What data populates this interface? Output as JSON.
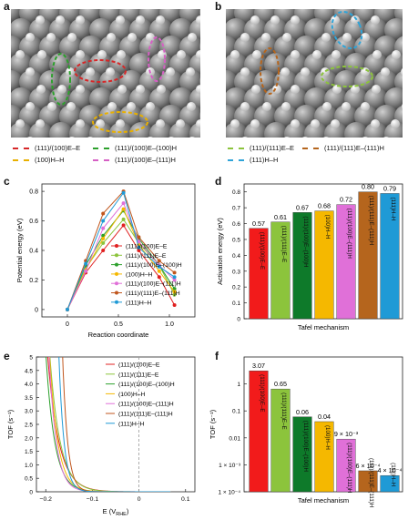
{
  "panels": {
    "a": {
      "letter": "a",
      "legend": [
        {
          "label": "(111)/(100)E–E",
          "color": "#d62728"
        },
        {
          "label": "(111)/(100)E–(100)H",
          "color": "#2ca02c"
        },
        {
          "label": "(100)H–H",
          "color": "#e8b000"
        },
        {
          "label": "(111)/(100)E–(111)H",
          "color": "#d65fc4"
        }
      ]
    },
    "b": {
      "letter": "b",
      "legend": [
        {
          "label": "(111)/(111)E–E",
          "color": "#8cc43c"
        },
        {
          "label": "(111)/(111)E–(111)H",
          "color": "#b5651d"
        },
        {
          "label": "(111)H–H",
          "color": "#2fa4d8"
        }
      ]
    },
    "c": {
      "letter": "c"
    },
    "d": {
      "letter": "d"
    },
    "e": {
      "letter": "e"
    },
    "f": {
      "letter": "f"
    }
  },
  "chart_data": [
    {
      "id": "c",
      "type": "line",
      "xlabel": "Reaction coordinate",
      "ylabel": "Potential energy (eV)",
      "xlim": [
        -0.25,
        1.25
      ],
      "ylim": [
        -0.05,
        0.85
      ],
      "xticks": [
        0,
        0.5,
        1.0
      ],
      "xtick_labels": [
        "0",
        "0.5",
        "1.0"
      ],
      "yticks": [
        0,
        0.2,
        0.4,
        0.6,
        0.8
      ],
      "ytick_labels": [
        "0",
        "0.2",
        "0.4",
        "0.6",
        "0.8"
      ],
      "x": [
        0,
        0.18,
        0.35,
        0.55,
        0.7,
        0.9,
        1.05
      ],
      "series": [
        {
          "name": "(111)/(100)E–E",
          "color": "#e02020",
          "values": [
            0,
            0.25,
            0.4,
            0.57,
            0.4,
            0.22,
            0.03
          ]
        },
        {
          "name": "(111)/(111)E–E",
          "color": "#8cc43c",
          "values": [
            0,
            0.28,
            0.45,
            0.61,
            0.45,
            0.3,
            0.1
          ]
        },
        {
          "name": "(111)/(100)E–(100)H",
          "color": "#2ca02c",
          "values": [
            0,
            0.3,
            0.5,
            0.67,
            0.48,
            0.3,
            0.14
          ]
        },
        {
          "name": "(100)H–H",
          "color": "#f5b800",
          "values": [
            0,
            0.27,
            0.48,
            0.68,
            0.44,
            0.26,
            0.12
          ]
        },
        {
          "name": "(111)/(100)E–(111)H",
          "color": "#e070d8",
          "values": [
            0,
            0.26,
            0.55,
            0.72,
            0.46,
            0.3,
            0.2
          ]
        },
        {
          "name": "(111)/(111)E–(111)H",
          "color": "#c0561d",
          "values": [
            0,
            0.33,
            0.65,
            0.8,
            0.49,
            0.33,
            0.25
          ]
        },
        {
          "name": "(111)H–H",
          "color": "#1f9ad6",
          "values": [
            0,
            0.31,
            0.6,
            0.79,
            0.42,
            0.29,
            0.22
          ]
        }
      ]
    },
    {
      "id": "d",
      "type": "bar",
      "xlabel": "Tafel mechanism",
      "ylabel": "Activation energy (eV)",
      "ylim": [
        0,
        0.85
      ],
      "yticks": [
        0,
        0.1,
        0.2,
        0.3,
        0.4,
        0.5,
        0.6,
        0.7,
        0.8
      ],
      "ytick_labels": [
        "0",
        "0.1",
        "0.2",
        "0.3",
        "0.4",
        "0.5",
        "0.6",
        "0.7",
        "0.8"
      ],
      "categories": [
        "(111)/(100)E–E",
        "(111)/(111)E–E",
        "(111)/(100)E–(100)H",
        "(100)H–H",
        "(111)/(100)E–(111)H",
        "(111)/(111)E–(111)H",
        "(111)H–H"
      ],
      "values": [
        0.57,
        0.61,
        0.67,
        0.68,
        0.72,
        0.8,
        0.79
      ],
      "value_labels": [
        "0.57",
        "0.61",
        "0.67",
        "0.68",
        "0.72",
        "0.80",
        "0.79"
      ],
      "colors": [
        "#f21b1b",
        "#8cc43c",
        "#0e7a2a",
        "#f5b800",
        "#e070d8",
        "#b5651d",
        "#1f9ad6"
      ]
    },
    {
      "id": "e",
      "type": "line",
      "xlabel": "E (V",
      "xlabel_sub": "RHE",
      "xlabel_end": ")",
      "ylabel": "TOF (s⁻¹)",
      "xlim": [
        -0.22,
        0.12
      ],
      "ylim": [
        0,
        5
      ],
      "xticks": [
        -0.2,
        -0.1,
        0,
        0.1
      ],
      "xtick_labels": [
        "−0.2",
        "−0.1",
        "0",
        "0.1"
      ],
      "yticks": [
        0,
        0.5,
        1,
        1.5,
        2,
        2.5,
        3,
        3.5,
        4,
        4.5,
        5
      ],
      "ytick_labels": [
        "0",
        "0.5",
        "1.0",
        "1.5",
        "2.0",
        "2.5",
        "3.0",
        "3.5",
        "4.0",
        "4.5",
        "5"
      ],
      "series": [
        {
          "name": "(111)/(100)E–E",
          "color": "#e02020",
          "v0": 0.0015,
          "k": 18
        },
        {
          "name": "(111)/(111)E–E",
          "color": "#8cc43c",
          "v0": 0.00094,
          "k": 19.5
        },
        {
          "name": "(111)/(100)E–(100)H",
          "color": "#2ca02c",
          "v0": 0.00013,
          "k": 23
        },
        {
          "name": "(100)H–H",
          "color": "#f5b800",
          "v0": 0.0001,
          "k": 24.5
        },
        {
          "name": "(111)/(100)E–(111)H",
          "color": "#e070d8",
          "v0": 2e-05,
          "k": 28
        },
        {
          "name": "(111)/(111)E–(111)H",
          "color": "#c0561d",
          "v0": 1.4e-06,
          "k": 40
        },
        {
          "name": "(111)H–H",
          "color": "#1f9ad6",
          "v0": 1e-06,
          "k": 39
        }
      ]
    },
    {
      "id": "f",
      "type": "bar",
      "xlabel": "Tafel mechanism",
      "ylabel": "TOF (s⁻¹)",
      "log_scale": true,
      "ylim": [
        0.0001,
        10
      ],
      "yticks": [
        0.0001,
        0.001,
        0.01,
        0.1,
        1
      ],
      "ytick_labels": [
        "1 × 10⁻⁴",
        "1 × 10⁻³",
        "0.01",
        "0.1",
        "1"
      ],
      "categories": [
        "(111)/(100)E–E",
        "(111)/(111)E–E",
        "(111)/(100)E–(100)H",
        "(100)H–H",
        "(111)/(100)E–(111)H",
        "(111)/(111)E–(111)H",
        "(111)H–H"
      ],
      "values": [
        3.07,
        0.65,
        0.06,
        0.04,
        0.009,
        0.0006,
        0.0004
      ],
      "value_labels": [
        "3.07",
        "0.65",
        "0.06",
        "0.04",
        "9 × 10⁻³",
        "6 × 10⁻⁴",
        "4 × 10⁻⁴"
      ],
      "colors": [
        "#f21b1b",
        "#8cc43c",
        "#0e7a2a",
        "#f5b800",
        "#e070d8",
        "#b5651d",
        "#1f9ad6"
      ]
    }
  ]
}
